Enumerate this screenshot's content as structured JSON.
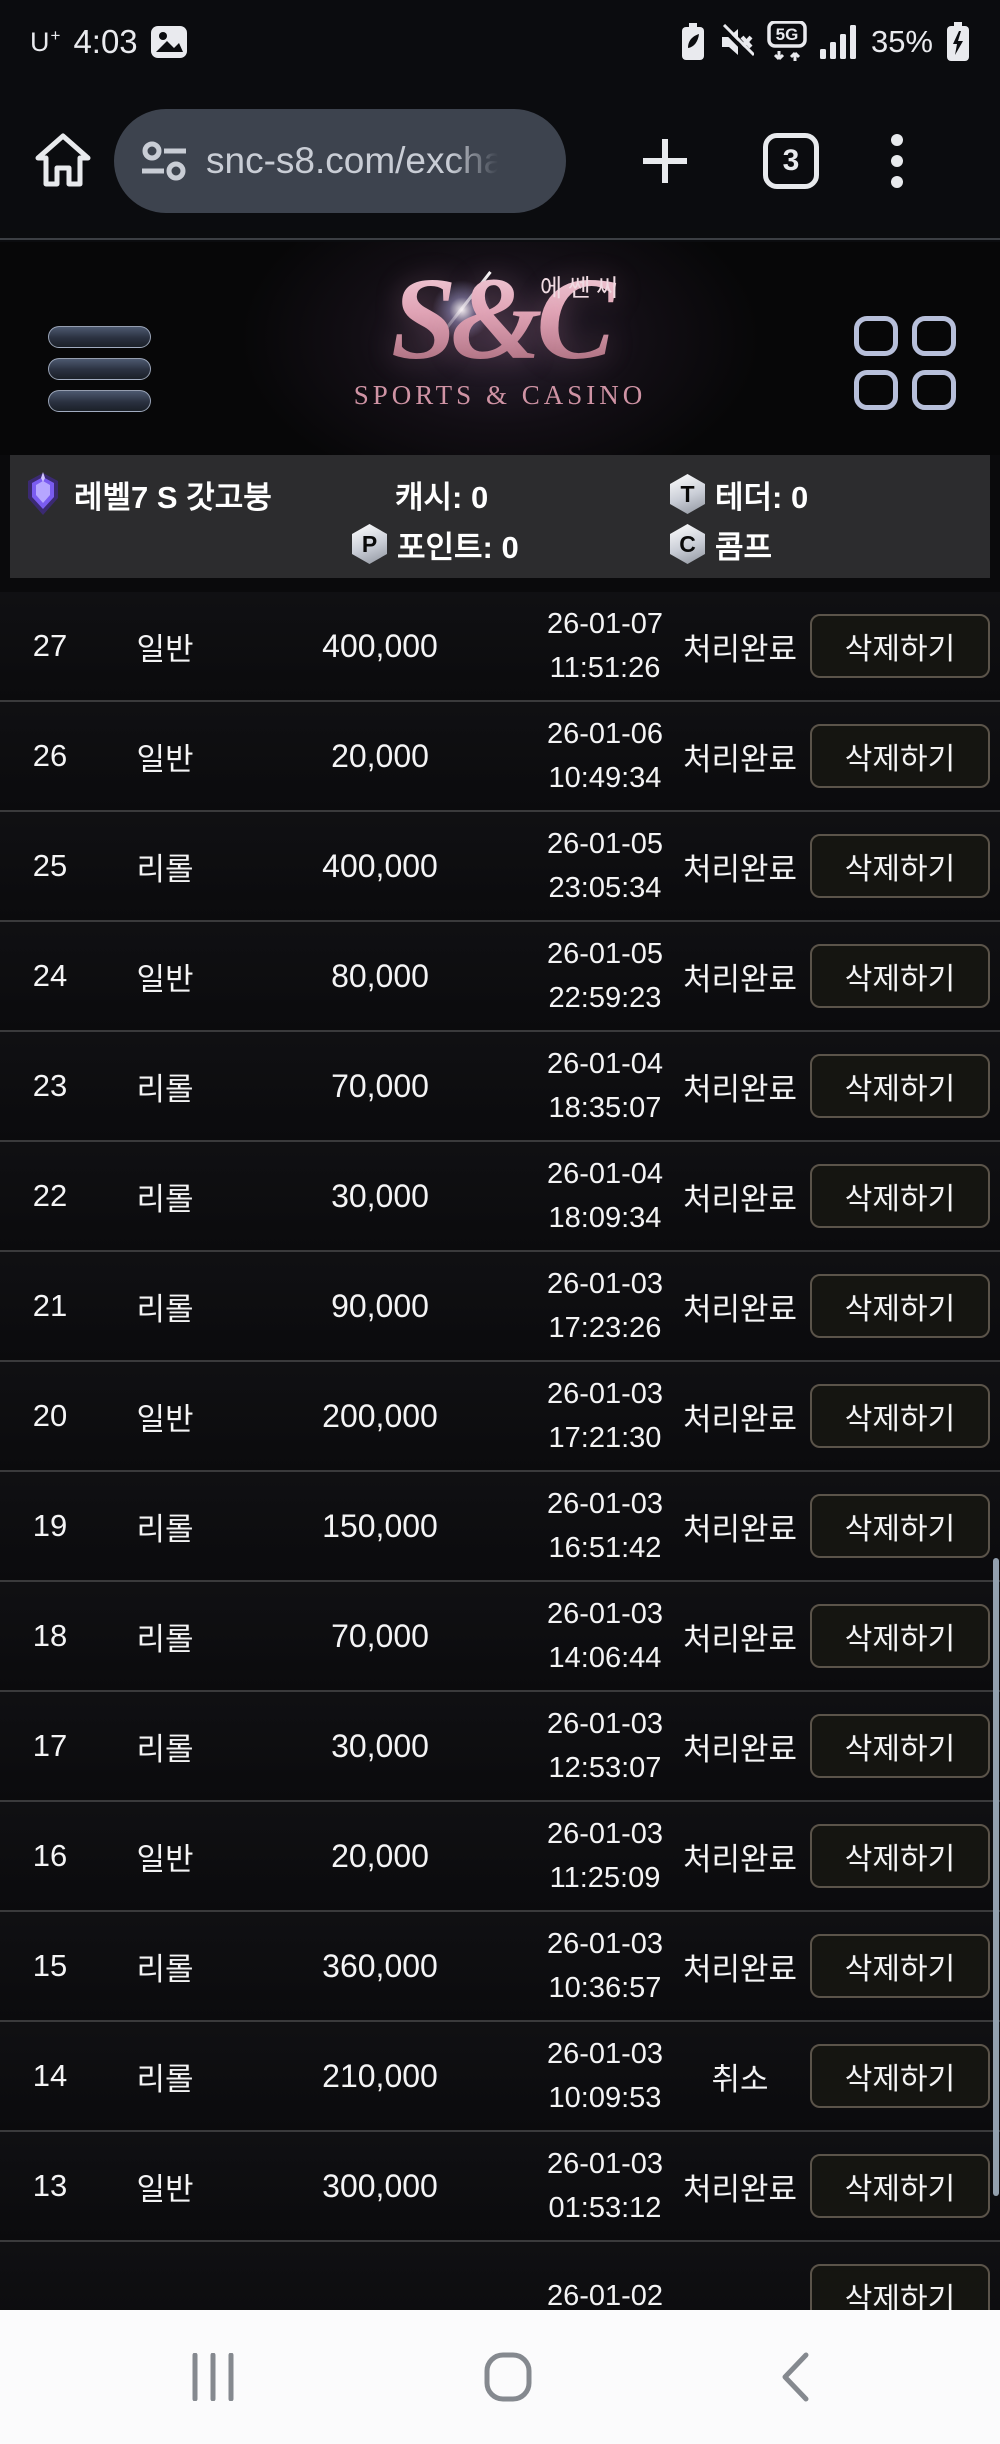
{
  "status_bar": {
    "carrier": "U",
    "carrier_sup": "+",
    "time": "4:03",
    "network": "5G",
    "battery_pct": "35%"
  },
  "browser": {
    "url": "snc-s8.com/excha",
    "tab_count": "3"
  },
  "site_header": {
    "logo_script": "S&C",
    "logo_korean": "에쎈씨",
    "logo_sub": "SPORTS & CASINO"
  },
  "user_bar": {
    "level_name": "레벨7 S 갓고붕",
    "cash": "캐시: 0",
    "tether": "테더: 0",
    "point": "포인트: 0",
    "comp": "콤프",
    "tether_badge": "T",
    "point_badge": "P",
    "comp_badge": "C"
  },
  "table": {
    "delete_label": "삭제하기",
    "rows": [
      {
        "num": "27",
        "type": "일반",
        "amount": "400,000",
        "date": "26-01-07",
        "time": "11:51:26",
        "status": "처리완료"
      },
      {
        "num": "26",
        "type": "일반",
        "amount": "20,000",
        "date": "26-01-06",
        "time": "10:49:34",
        "status": "처리완료"
      },
      {
        "num": "25",
        "type": "리롤",
        "amount": "400,000",
        "date": "26-01-05",
        "time": "23:05:34",
        "status": "처리완료"
      },
      {
        "num": "24",
        "type": "일반",
        "amount": "80,000",
        "date": "26-01-05",
        "time": "22:59:23",
        "status": "처리완료"
      },
      {
        "num": "23",
        "type": "리롤",
        "amount": "70,000",
        "date": "26-01-04",
        "time": "18:35:07",
        "status": "처리완료"
      },
      {
        "num": "22",
        "type": "리롤",
        "amount": "30,000",
        "date": "26-01-04",
        "time": "18:09:34",
        "status": "처리완료"
      },
      {
        "num": "21",
        "type": "리롤",
        "amount": "90,000",
        "date": "26-01-03",
        "time": "17:23:26",
        "status": "처리완료"
      },
      {
        "num": "20",
        "type": "일반",
        "amount": "200,000",
        "date": "26-01-03",
        "time": "17:21:30",
        "status": "처리완료"
      },
      {
        "num": "19",
        "type": "리롤",
        "amount": "150,000",
        "date": "26-01-03",
        "time": "16:51:42",
        "status": "처리완료"
      },
      {
        "num": "18",
        "type": "리롤",
        "amount": "70,000",
        "date": "26-01-03",
        "time": "14:06:44",
        "status": "처리완료"
      },
      {
        "num": "17",
        "type": "리롤",
        "amount": "30,000",
        "date": "26-01-03",
        "time": "12:53:07",
        "status": "처리완료"
      },
      {
        "num": "16",
        "type": "일반",
        "amount": "20,000",
        "date": "26-01-03",
        "time": "11:25:09",
        "status": "처리완료"
      },
      {
        "num": "15",
        "type": "리롤",
        "amount": "360,000",
        "date": "26-01-03",
        "time": "10:36:57",
        "status": "처리완료"
      },
      {
        "num": "14",
        "type": "리롤",
        "amount": "210,000",
        "date": "26-01-03",
        "time": "10:09:53",
        "status": "취소"
      },
      {
        "num": "13",
        "type": "일반",
        "amount": "300,000",
        "date": "26-01-03",
        "time": "01:53:12",
        "status": "처리완료"
      },
      {
        "num": "",
        "type": "",
        "amount": "",
        "date": "26-01-02",
        "time": "",
        "status": ""
      }
    ]
  }
}
